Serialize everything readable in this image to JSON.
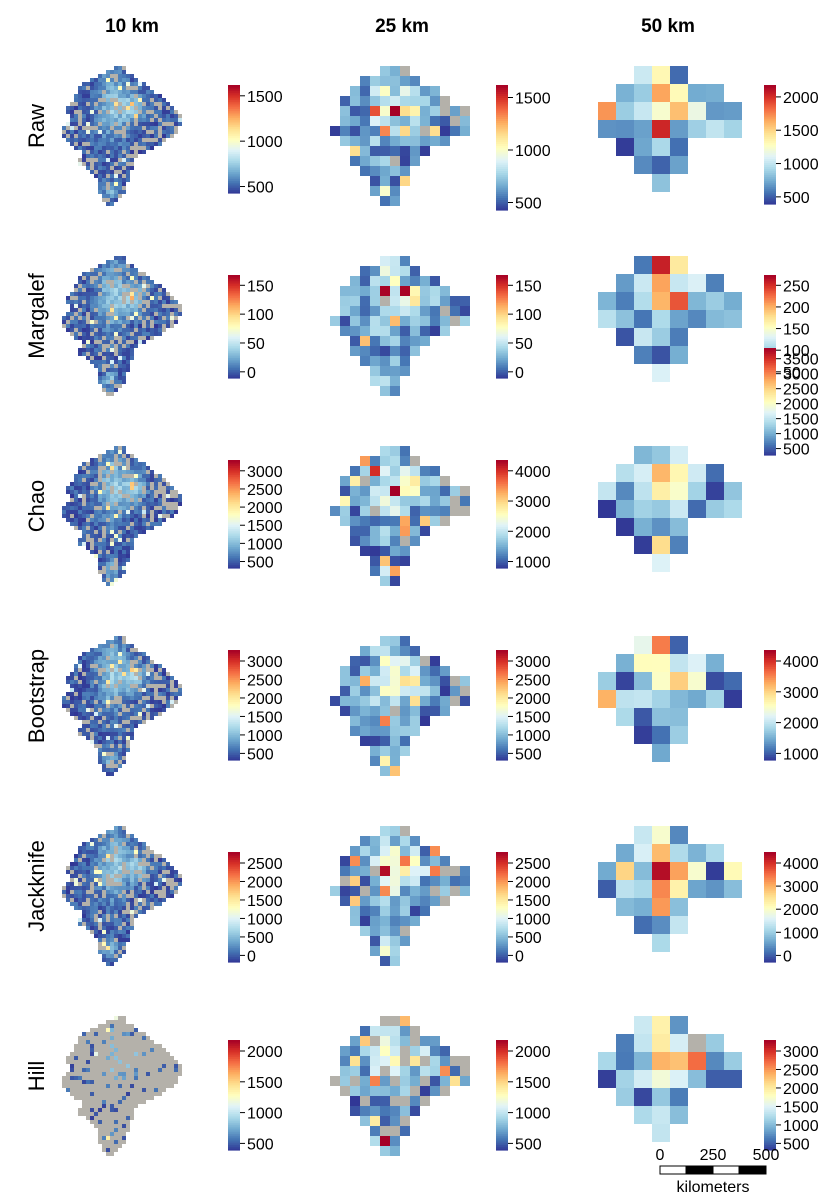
{
  "chart_data": {
    "type": "heatmap",
    "columns": [
      "10 km",
      "25 km",
      "50 km"
    ],
    "rows": [
      {
        "label": "Raw",
        "panels": [
          {
            "ticks": [
              "500",
              "1000",
              "1500"
            ]
          },
          {
            "ticks": [
              "500",
              "1000",
              "1500"
            ]
          },
          {
            "ticks": [
              "500",
              "1000",
              "1500",
              "2000"
            ]
          }
        ]
      },
      {
        "label": "Margalef",
        "panels": [
          {
            "ticks": [
              "0",
              "50",
              "100",
              "150"
            ]
          },
          {
            "ticks": [
              "0",
              "50",
              "100",
              "150"
            ]
          },
          {
            "ticks": [
              "50",
              "100",
              "150",
              "200",
              "250"
            ]
          }
        ]
      },
      {
        "label": "Chao",
        "panels": [
          {
            "ticks": [
              "500",
              "1000",
              "1500",
              "2000",
              "2500",
              "3000"
            ]
          },
          {
            "ticks": [
              "1000",
              "2000",
              "3000",
              "4000"
            ]
          },
          {
            "ticks": [
              "500",
              "1000",
              "1500",
              "2000",
              "2500",
              "3000",
              "3500"
            ]
          }
        ]
      },
      {
        "label": "Bootstrap",
        "panels": [
          {
            "ticks": [
              "500",
              "1000",
              "1500",
              "2000",
              "2500",
              "3000"
            ]
          },
          {
            "ticks": [
              "500",
              "1000",
              "1500",
              "2000",
              "2500",
              "3000"
            ]
          },
          {
            "ticks": [
              "1000",
              "2000",
              "3000",
              "4000"
            ]
          }
        ]
      },
      {
        "label": "Jackknife",
        "panels": [
          {
            "ticks": [
              "0",
              "500",
              "1000",
              "1500",
              "2000",
              "2500"
            ]
          },
          {
            "ticks": [
              "0",
              "500",
              "1000",
              "1500",
              "2000",
              "2500"
            ]
          },
          {
            "ticks": [
              "0",
              "1000",
              "2000",
              "3000",
              "4000"
            ]
          }
        ]
      },
      {
        "label": "Hill",
        "panels": [
          {
            "ticks": [
              "500",
              "1000",
              "1500",
              "2000"
            ]
          },
          {
            "ticks": [
              "500",
              "1000",
              "1500",
              "2000"
            ]
          },
          {
            "ticks": [
              "500",
              "1000",
              "1500",
              "2000",
              "2500",
              "3000"
            ]
          }
        ]
      }
    ],
    "colorscale": [
      "#313695",
      "#4575b4",
      "#74add1",
      "#abd9e9",
      "#e0f3f8",
      "#ffffbf",
      "#fee090",
      "#fdae61",
      "#f46d43",
      "#d73027",
      "#a50026"
    ],
    "no_data_color": "#b4b1aa",
    "scalebar": {
      "ticks": [
        "0",
        "250",
        "500"
      ],
      "unit": "kilometers"
    }
  }
}
